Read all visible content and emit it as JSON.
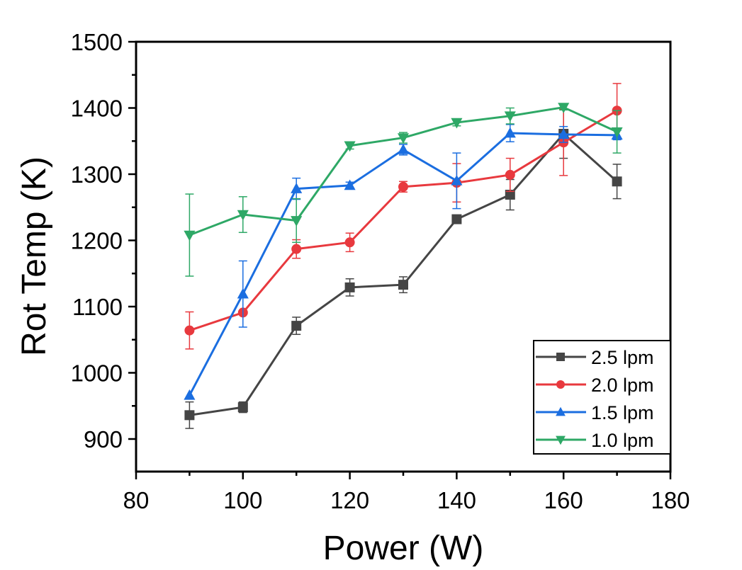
{
  "chart_data": {
    "type": "line",
    "title": "",
    "xlabel": "Power (W)",
    "ylabel": "Rot Temp (K)",
    "xlim": [
      80,
      180
    ],
    "ylim": [
      850,
      1500
    ],
    "x_ticks": [
      80,
      100,
      120,
      140,
      160,
      180
    ],
    "y_ticks": [
      900,
      1000,
      1100,
      1200,
      1300,
      1400,
      1500
    ],
    "x_tick_labels": [
      "80",
      "100",
      "120",
      "140",
      "160",
      "180"
    ],
    "y_tick_labels": [
      "900",
      "1000",
      "1100",
      "1200",
      "1300",
      "1400",
      "1500"
    ],
    "grid": false,
    "legend_position": "bottom-right",
    "x": [
      90,
      100,
      110,
      120,
      130,
      140,
      150,
      160,
      170
    ],
    "series": [
      {
        "name": "2.5 lpm",
        "color": "#454545",
        "marker": "square",
        "values": [
          936,
          948,
          1071,
          1129,
          1133,
          1232,
          1269,
          1361,
          1289
        ],
        "errors": [
          20,
          8,
          13,
          13,
          12,
          5,
          23,
          37,
          26
        ]
      },
      {
        "name": "2.0 lpm",
        "color": "#e8393e",
        "marker": "circle",
        "values": [
          1064,
          1091,
          1187,
          1197,
          1281,
          1287,
          1299,
          1348,
          1396
        ],
        "errors": [
          28,
          0,
          14,
          14,
          8,
          29,
          25,
          50,
          41
        ]
      },
      {
        "name": "1.5 lpm",
        "color": "#1b6ee0",
        "marker": "triangle-up",
        "values": [
          966,
          1119,
          1278,
          1283,
          1337,
          1290,
          1362,
          1360,
          1359
        ],
        "errors": [
          0,
          50,
          16,
          5,
          8,
          42,
          13,
          12,
          7
        ]
      },
      {
        "name": "1.0 lpm",
        "color": "#2ea866",
        "marker": "triangle-down",
        "values": [
          1208,
          1239,
          1230,
          1343,
          1355,
          1378,
          1388,
          1401,
          1364
        ],
        "errors": [
          62,
          27,
          33,
          5,
          8,
          5,
          12,
          4,
          32
        ]
      }
    ]
  }
}
